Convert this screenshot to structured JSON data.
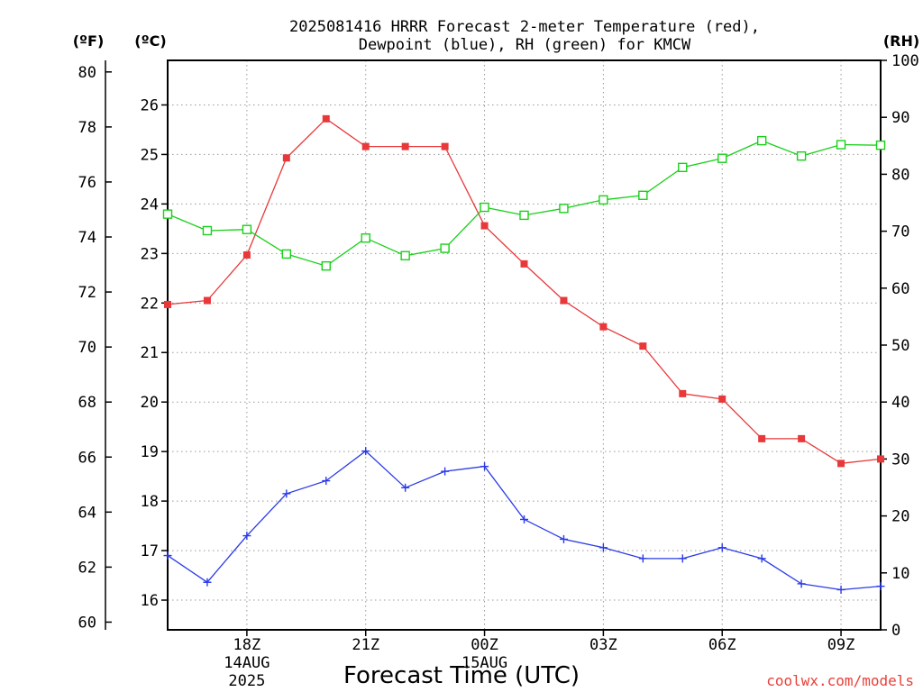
{
  "title": {
    "line1": "2025081416 HRRR Forecast 2-meter Temperature (red),",
    "line2": "Dewpoint (blue), RH (green) for KMCW"
  },
  "units": {
    "fahrenheit": "(ºF)",
    "celsius": "(ºC)",
    "rh": "(RH)"
  },
  "xlabel": "Forecast Time (UTC)",
  "credit": "coolwx.com/models",
  "colors": {
    "temperature": "#e8383a",
    "dewpoint": "#2a3ae8",
    "rh": "#18d018"
  },
  "chart_data": {
    "type": "line",
    "x": [
      "2025-08-14 16Z",
      "2025-08-14 17Z",
      "2025-08-14 18Z",
      "2025-08-14 19Z",
      "2025-08-14 20Z",
      "2025-08-14 21Z",
      "2025-08-14 22Z",
      "2025-08-14 23Z",
      "2025-08-15 00Z",
      "2025-08-15 01Z",
      "2025-08-15 02Z",
      "2025-08-15 03Z",
      "2025-08-15 04Z",
      "2025-08-15 05Z",
      "2025-08-15 06Z",
      "2025-08-15 07Z",
      "2025-08-15 08Z",
      "2025-08-15 09Z",
      "2025-08-15 10Z"
    ],
    "x_ticks": [
      {
        "hour": "18Z",
        "date": "14AUG",
        "year": "2025",
        "index": 2
      },
      {
        "hour": "21Z",
        "date": "",
        "year": "",
        "index": 5
      },
      {
        "hour": "00Z",
        "date": "15AUG",
        "year": "",
        "index": 8
      },
      {
        "hour": "03Z",
        "date": "",
        "year": "",
        "index": 11
      },
      {
        "hour": "06Z",
        "date": "",
        "year": "",
        "index": 14
      },
      {
        "hour": "09Z",
        "date": "",
        "year": "",
        "index": 17
      }
    ],
    "series": [
      {
        "name": "Temperature",
        "axis": "celsius",
        "color": "#e8383a",
        "marker": "filled-square",
        "values": [
          21.97,
          22.05,
          22.97,
          24.93,
          25.72,
          25.16,
          25.16,
          25.16,
          23.56,
          22.79,
          22.05,
          21.52,
          21.13,
          20.17,
          20.06,
          19.26,
          19.26,
          18.76,
          18.85
        ]
      },
      {
        "name": "Dewpoint",
        "axis": "celsius",
        "color": "#2a3ae8",
        "marker": "plus",
        "values": [
          16.9,
          16.36,
          17.3,
          18.15,
          18.41,
          19.01,
          18.27,
          18.6,
          18.7,
          17.63,
          17.23,
          17.06,
          16.84,
          16.84,
          17.06,
          16.84,
          16.33,
          16.21,
          16.28
        ]
      },
      {
        "name": "RH",
        "axis": "rh",
        "color": "#18d018",
        "marker": "open-square",
        "values": [
          73.0,
          70.1,
          70.3,
          66.0,
          63.9,
          68.8,
          65.7,
          67.0,
          74.2,
          72.8,
          74.0,
          75.5,
          76.3,
          81.2,
          82.8,
          85.9,
          83.2,
          85.2,
          85.1
        ]
      }
    ],
    "axes": {
      "celsius": {
        "ticks": [
          16,
          17,
          18,
          19,
          20,
          21,
          22,
          23,
          24,
          25,
          26
        ],
        "range": [
          15.4,
          26.9
        ]
      },
      "fahrenheit": {
        "ticks": [
          60,
          62,
          64,
          66,
          68,
          70,
          72,
          74,
          76,
          78,
          80
        ],
        "range": [
          59.72,
          80.42
        ]
      },
      "rh": {
        "ticks": [
          0,
          10,
          20,
          30,
          40,
          50,
          60,
          70,
          80,
          90,
          100
        ],
        "range": [
          0,
          100
        ]
      }
    },
    "grid": true
  }
}
